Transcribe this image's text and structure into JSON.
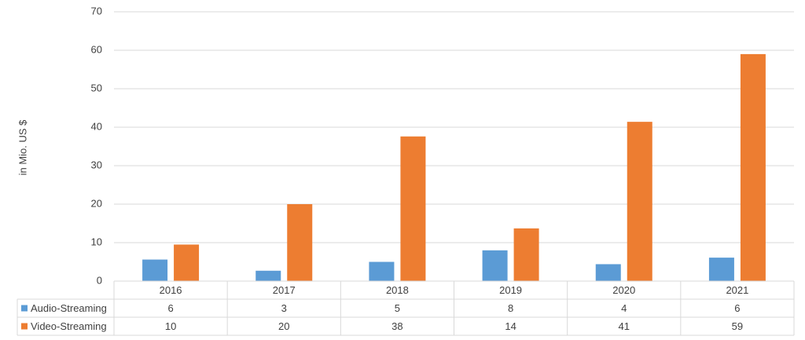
{
  "chart_data": {
    "type": "bar",
    "y_label": "in Mio. US $",
    "categories": [
      "2016",
      "2017",
      "2018",
      "2019",
      "2020",
      "2021"
    ],
    "series": [
      {
        "name": "Audio-Streaming",
        "color": "#5b9bd5",
        "values": [
          5.6,
          2.7,
          5.0,
          8.0,
          4.4,
          6.1
        ],
        "value_labels": [
          "6",
          "3",
          "5",
          "8",
          "4",
          "6"
        ]
      },
      {
        "name": "Video-Streaming",
        "color": "#ed7d31",
        "values": [
          9.5,
          20.0,
          37.6,
          13.7,
          41.4,
          59.0
        ],
        "value_labels": [
          "10",
          "20",
          "38",
          "14",
          "41",
          "59"
        ]
      }
    ],
    "ylim": [
      0,
      70
    ],
    "yticks": [
      0,
      10,
      20,
      30,
      40,
      50,
      60,
      70
    ],
    "grid": true,
    "data_table": true
  }
}
